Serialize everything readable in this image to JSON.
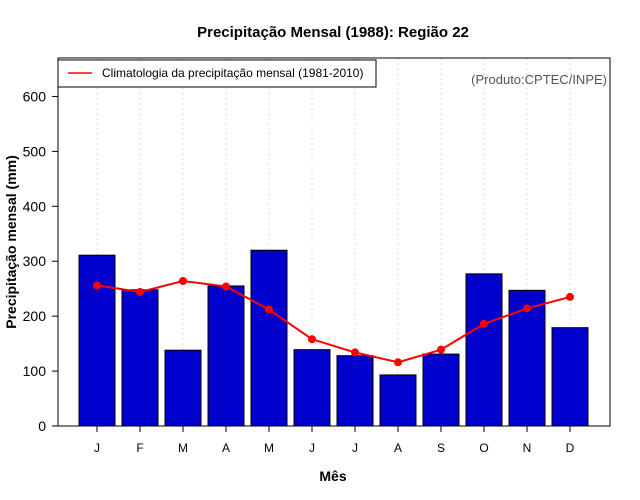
{
  "chart_data": {
    "type": "bar",
    "title": "Precipitação Mensal (1988): Região 22",
    "xlabel": "Mês",
    "ylabel": "Precipitação mensal (mm)",
    "ylim": [
      0,
      670
    ],
    "yticks": [
      0,
      100,
      200,
      300,
      400,
      500,
      600
    ],
    "grid": "vertical-dotted",
    "categories": [
      "J",
      "F",
      "M",
      "A",
      "M",
      "J",
      "J",
      "A",
      "S",
      "O",
      "N",
      "D"
    ],
    "series": [
      {
        "name": "Precipitação mensal (1988)",
        "type": "bar",
        "color": "#0000cc",
        "values": [
          311,
          248,
          138,
          255,
          320,
          139,
          128,
          93,
          131,
          277,
          247,
          179
        ]
      },
      {
        "name": "Climatologia da precipitação mensal (1981-2010)",
        "type": "line",
        "color": "#ff0000",
        "values": [
          256,
          244,
          264,
          254,
          212,
          158,
          134,
          116,
          139,
          186,
          214,
          235
        ]
      }
    ],
    "legend": {
      "position": "top-left",
      "label": "Climatologia da precipitação mensal (1981-2010)"
    },
    "credit": "(Produto:CPTEC/INPE)"
  }
}
